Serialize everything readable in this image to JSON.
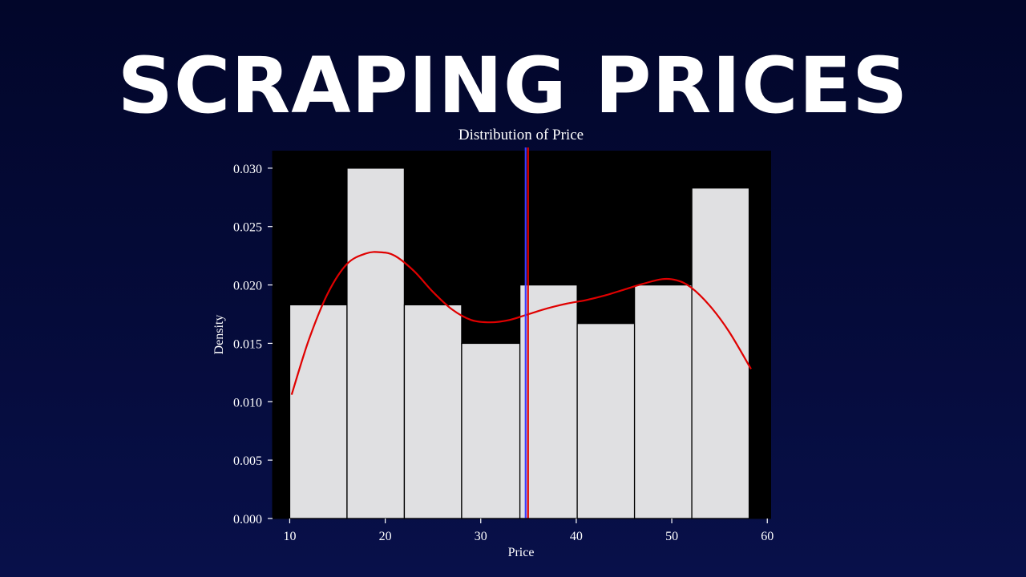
{
  "headline": "SCRAPING PRICES",
  "chart_data": {
    "type": "bar",
    "title": "Distribution of Price",
    "xlabel": "Price",
    "ylabel": "Density",
    "xlim": [
      8.2,
      60.4
    ],
    "ylim": [
      0,
      0.0315
    ],
    "bins": [
      {
        "x0": 10.0,
        "x1": 16.0,
        "density": 0.0183
      },
      {
        "x0": 16.0,
        "x1": 22.0,
        "density": 0.03
      },
      {
        "x0": 22.0,
        "x1": 28.0,
        "density": 0.0183
      },
      {
        "x0": 28.0,
        "x1": 34.1,
        "density": 0.015
      },
      {
        "x0": 34.1,
        "x1": 40.1,
        "density": 0.02
      },
      {
        "x0": 40.1,
        "x1": 46.1,
        "density": 0.0167
      },
      {
        "x0": 46.1,
        "x1": 52.1,
        "density": 0.02
      },
      {
        "x0": 52.1,
        "x1": 58.1,
        "density": 0.0283
      }
    ],
    "kde": {
      "x": [
        10.2,
        12,
        14,
        16,
        18,
        19.5,
        21,
        23,
        25,
        27,
        29,
        31,
        33,
        35,
        37,
        39,
        41,
        43,
        45,
        47,
        49,
        50.5,
        52,
        54,
        56,
        58.3
      ],
      "y": [
        0.0106,
        0.0153,
        0.0193,
        0.0218,
        0.0227,
        0.0228,
        0.0225,
        0.0212,
        0.0194,
        0.0179,
        0.017,
        0.0168,
        0.017,
        0.0175,
        0.018,
        0.0184,
        0.0187,
        0.0191,
        0.0196,
        0.0201,
        0.0205,
        0.0204,
        0.0198,
        0.0182,
        0.016,
        0.0128
      ]
    },
    "vlines": [
      {
        "x": 34.7,
        "color": "#3b3bff"
      },
      {
        "x": 34.95,
        "color": "#e00000"
      }
    ],
    "xticks": [
      10,
      20,
      30,
      40,
      50,
      60
    ],
    "yticks": [
      0.0,
      0.005,
      0.01,
      0.015,
      0.02,
      0.025,
      0.03
    ],
    "colors": {
      "bar_fill": "#e0e0e2",
      "bar_edge": "#000000",
      "kde": "#e00000",
      "axes_bg": "#000000",
      "text": "#ffffff"
    }
  }
}
